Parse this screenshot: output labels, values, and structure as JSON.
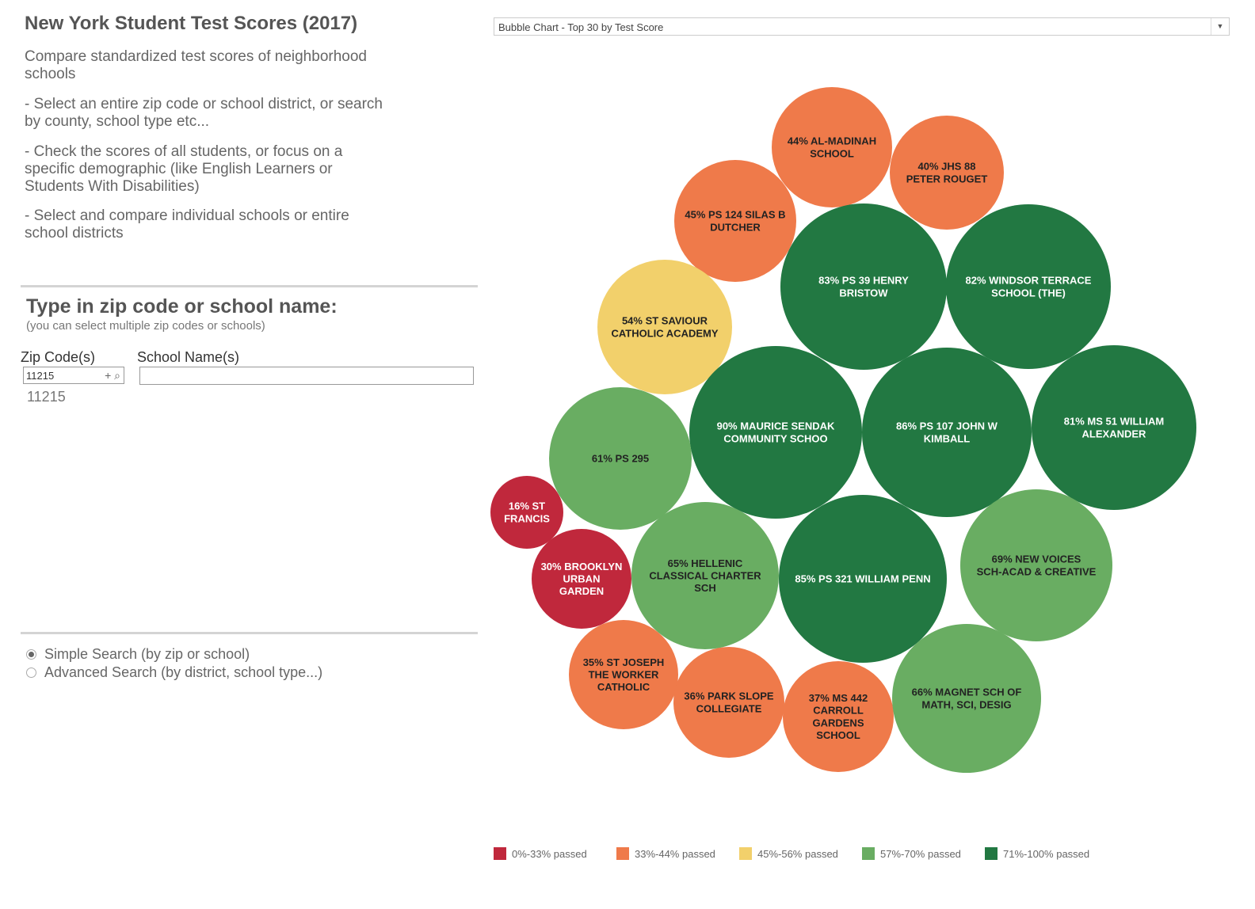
{
  "header": {
    "title": "New York Student Test Scores (2017)"
  },
  "intro": [
    "Compare standardized test scores of neighborhood schools",
    "- Select an entire zip code or school district, or search by county, school type etc...",
    "- Check the scores of all students, or focus on a specific demographic (like English Learners or Students With Disabilities)",
    "- Select and compare individual schools or entire school districts"
  ],
  "search": {
    "title": "Type in zip code or school name:",
    "subtitle": "(you can select multiple zip codes or schools)",
    "zip_label": "Zip Code(s)",
    "zip_value": "11215",
    "zip_selected": "11215",
    "school_label": "School Name(s)",
    "school_value": ""
  },
  "mode": {
    "options": [
      "Simple Search (by zip or school)",
      "Advanced Search (by district, school type...)"
    ],
    "selected": 0
  },
  "view_select": {
    "value": "Bubble Chart - Top 30 by Test Score"
  },
  "colors": {
    "0-33": "#c0283c",
    "33-44": "#ef7a4a",
    "45-56": "#f2d06b",
    "57-70": "#69ad62",
    "71-100": "#227842"
  },
  "chart_data": {
    "type": "bubble",
    "size_and_color_by": "percent passed",
    "legend": [
      {
        "label": "0%-33% passed",
        "color": "#c0283c"
      },
      {
        "label": "33%-44% passed",
        "color": "#ef7a4a"
      },
      {
        "label": "45%-56% passed",
        "color": "#f2d06b"
      },
      {
        "label": "57%-70% passed",
        "color": "#69ad62"
      },
      {
        "label": "71%-100% passed",
        "color": "#227842"
      }
    ],
    "legend_position": "bottom",
    "bubbles": [
      {
        "pct": 44,
        "lines": [
          "44% AL-MADINAH",
          "SCHOOL"
        ],
        "color": "#ef7a4a"
      },
      {
        "pct": 40,
        "lines": [
          "40% JHS 88",
          "PETER ROUGET"
        ],
        "color": "#ef7a4a"
      },
      {
        "pct": 45,
        "lines": [
          "45% PS 124 SILAS B",
          "DUTCHER"
        ],
        "color": "#ef7a4a"
      },
      {
        "pct": 83,
        "lines": [
          "83% PS 39 HENRY",
          "BRISTOW"
        ],
        "color": "#227842"
      },
      {
        "pct": 82,
        "lines": [
          "82% WINDSOR TERRACE",
          "SCHOOL (THE)"
        ],
        "color": "#227842"
      },
      {
        "pct": 54,
        "lines": [
          "54% ST SAVIOUR",
          "CATHOLIC ACADEMY"
        ],
        "color": "#f2d06b"
      },
      {
        "pct": 90,
        "lines": [
          "90% MAURICE SENDAK",
          "COMMUNITY SCHOO"
        ],
        "color": "#227842"
      },
      {
        "pct": 86,
        "lines": [
          "86% PS 107 JOHN W",
          "KIMBALL"
        ],
        "color": "#227842"
      },
      {
        "pct": 81,
        "lines": [
          "81% MS 51 WILLIAM",
          "ALEXANDER"
        ],
        "color": "#227842"
      },
      {
        "pct": 61,
        "lines": [
          "61% PS 295"
        ],
        "color": "#69ad62"
      },
      {
        "pct": 16,
        "lines": [
          "16% ST",
          "FRANCIS"
        ],
        "color": "#c0283c"
      },
      {
        "pct": 30,
        "lines": [
          "30% BROOKLYN",
          "URBAN",
          "GARDEN"
        ],
        "color": "#c0283c"
      },
      {
        "pct": 65,
        "lines": [
          "65% HELLENIC",
          "CLASSICAL CHARTER",
          "SCH"
        ],
        "color": "#69ad62"
      },
      {
        "pct": 85,
        "lines": [
          "85% PS 321 WILLIAM PENN"
        ],
        "color": "#227842"
      },
      {
        "pct": 69,
        "lines": [
          "69% NEW VOICES",
          "SCH-ACAD & CREATIVE"
        ],
        "color": "#69ad62"
      },
      {
        "pct": 35,
        "lines": [
          "35% ST JOSEPH",
          "THE WORKER",
          "CATHOLIC"
        ],
        "color": "#ef7a4a"
      },
      {
        "pct": 36,
        "lines": [
          "36% PARK SLOPE",
          "COLLEGIATE"
        ],
        "color": "#ef7a4a"
      },
      {
        "pct": 37,
        "lines": [
          "37% MS 442",
          "CARROLL",
          "GARDENS",
          "SCHOOL"
        ],
        "color": "#ef7a4a"
      },
      {
        "pct": 66,
        "lines": [
          "66% MAGNET SCH OF",
          "MATH, SCI, DESIG"
        ],
        "color": "#69ad62"
      }
    ]
  }
}
